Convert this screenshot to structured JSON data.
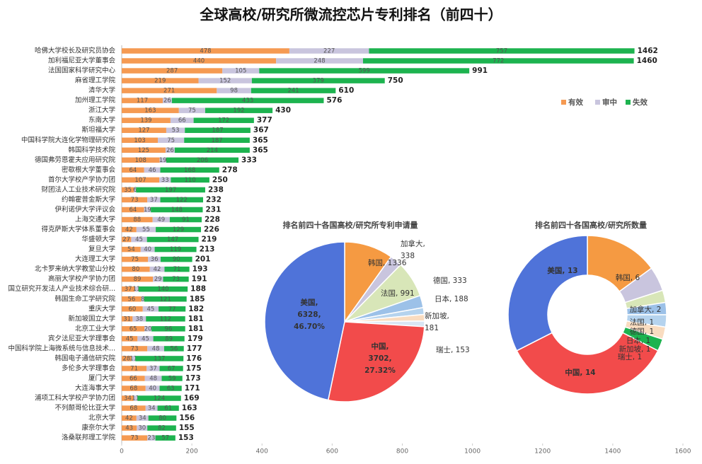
{
  "chart_data": [
    {
      "type": "stacked_barh",
      "title": "全球高校/研究所微流控芯片专利排名（前四十）",
      "categories": [
        "哈佛大学校长及研究员协会",
        "加利福尼亚大学董事会",
        "法国国家科学研究中心",
        "麻省理工学院",
        "清华大学",
        "加州理工学院",
        "浙江大学",
        "东南大学",
        "斯坦福大学",
        "中国科学院大连化学物理研究所",
        "韩国科学技术院",
        "德国弗劳恩霍夫应用研究院",
        "密歇根大学董事会",
        "首尔大学校产学协力团",
        "财团法人工业技术研究院",
        "约翰霍普金斯大学",
        "伊利诺伊大学评议会",
        "上海交通大学",
        "得克萨斯大学体系董事会",
        "华盛顿大学",
        "复旦大学",
        "大连理工大学",
        "北卡罗来纳大学教堂山分校",
        "高丽大学校产学协力团",
        "国立研究开发法人产业技术综合研...",
        "韩国生命工学研究院",
        "重庆大学",
        "新加坡国立大学",
        "北京工业大学",
        "宾夕法尼亚大学理事会",
        "中国科学院上海微系统与信息技术...",
        "韩国电子通信研究院",
        "多伦多大学理事会",
        "厦门大学",
        "大连海事大学",
        "浦项工科大学校产学协力团",
        "不列颠哥伦比亚大学",
        "北京大学",
        "康奈尔大学",
        "洛桑联邦理工学院"
      ],
      "series": [
        {
          "name": "有效",
          "color": "#f59a52",
          "values": [
            478,
            440,
            287,
            219,
            271,
            117,
            163,
            139,
            127,
            103,
            125,
            108,
            64,
            107,
            35,
            73,
            64,
            88,
            42,
            27,
            54,
            75,
            80,
            89,
            37,
            56,
            60,
            31,
            65,
            45,
            73,
            28,
            71,
            66,
            68,
            34,
            68,
            42,
            43,
            73
          ]
        },
        {
          "name": "审中",
          "color": "#c9c5de",
          "values": [
            227,
            248,
            105,
            152,
            98,
            26,
            75,
            66,
            53,
            75,
            26,
            19,
            46,
            33,
            6,
            37,
            19,
            49,
            55,
            45,
            40,
            36,
            42,
            29,
            11,
            8,
            45,
            38,
            20,
            45,
            48,
            11,
            37,
            48,
            40,
            11,
            34,
            34,
            30,
            23
          ]
        },
        {
          "name": "失效",
          "color": "#1db34f",
          "values": [
            757,
            772,
            599,
            379,
            241,
            433,
            192,
            172,
            187,
            187,
            214,
            206,
            168,
            110,
            197,
            122,
            148,
            91,
            129,
            147,
            119,
            90,
            71,
            73,
            140,
            121,
            77,
            112,
            96,
            89,
            56,
            137,
            67,
            59,
            63,
            124,
            61,
            80,
            82,
            57
          ]
        }
      ],
      "totals": [
        1462,
        1460,
        991,
        750,
        610,
        576,
        430,
        377,
        367,
        365,
        365,
        333,
        278,
        250,
        238,
        232,
        231,
        228,
        226,
        219,
        213,
        201,
        193,
        191,
        188,
        185,
        182,
        181,
        181,
        179,
        177,
        176,
        175,
        173,
        171,
        169,
        163,
        156,
        155,
        153
      ],
      "xlim": [
        0,
        1600
      ],
      "xticks": [
        0,
        200,
        400,
        600,
        800,
        1000,
        1200,
        1400,
        1600
      ],
      "grid": false,
      "legend": "upper right"
    },
    {
      "type": "pie",
      "title": "排名前四十各国高校/研究所专利申请量",
      "values": [
        1336,
        338,
        991,
        333,
        188,
        181,
        153,
        3702,
        6328
      ],
      "labels": [
        [
          "韩国, 1336"
        ],
        [
          "加拿大,",
          "338"
        ],
        [
          "法国, 991"
        ],
        [
          "德国, 333"
        ],
        [
          "日本, 188"
        ],
        [
          "新加坡,",
          "181"
        ],
        [
          "瑞士, 153"
        ],
        [
          "中国,",
          "3702,",
          "27.32%"
        ],
        [
          "美国,",
          "6328,",
          "46.70%"
        ]
      ],
      "colors": [
        "#f59a42",
        "#c9c5de",
        "#d8e6b8",
        "#9cc1e8",
        "#b5d3ee",
        "#f9dcc0",
        "#d9e6f4",
        "#f24b4b",
        "#4f73d9"
      ]
    },
    {
      "type": "donut",
      "title": "排名前四十各国高校/研究所数量",
      "values": [
        6,
        2,
        1,
        1,
        1,
        1,
        1,
        14,
        13
      ],
      "labels": [
        [
          "韩国, 6"
        ],
        [
          "加拿大, 2"
        ],
        [
          "法国, 1"
        ],
        [
          "德国, 1"
        ],
        [
          "日本, 1"
        ],
        [
          "新加坡, 1"
        ],
        [
          "瑞士, 1"
        ],
        [
          "中国, 14"
        ],
        [
          "美国, 13"
        ]
      ],
      "colors": [
        "#f59a42",
        "#c9c5de",
        "#d8e6b8",
        "#9cc1e8",
        "#b5d3ee",
        "#f9dcc0",
        "#1db34f",
        "#f24b4b",
        "#4f73d9"
      ]
    }
  ]
}
